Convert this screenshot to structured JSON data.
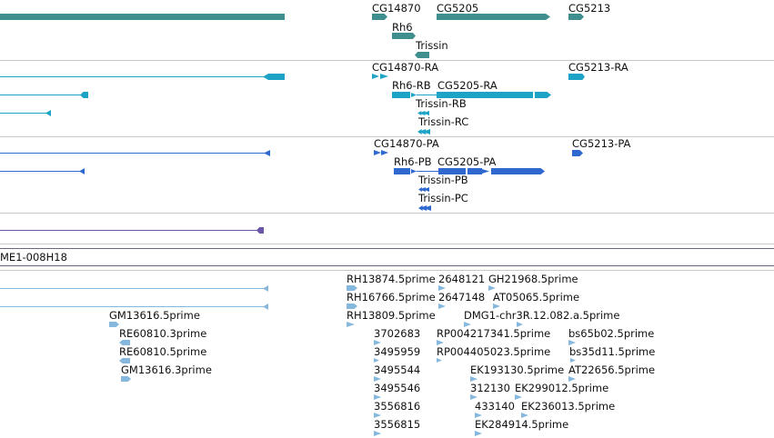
{
  "colors": {
    "gene": "#3f8f8f",
    "transcript_ra": "#1da3c5",
    "transcript_pa": "#2f69cf",
    "purple_feature": "#6b55a8",
    "est": "#86b8de",
    "separator": "#c8c8c8",
    "separator_dark": "#6b6487"
  },
  "tracks": {
    "gene": {
      "labels": [
        "CG14870",
        "CG5205",
        "CG5213",
        "Rh6",
        "Trissin"
      ]
    },
    "transcripts_ra": {
      "labels": [
        "CG14870-RA",
        "CG5213-RA",
        "Rh6-RB",
        "CG5205-RA",
        "Trissin-RB",
        "Trissin-RC"
      ]
    },
    "transcripts_pa": {
      "labels": [
        "CG14870-PA",
        "CG5213-PA",
        "Rh6-PB",
        "CG5205-PA",
        "Trissin-PB",
        "Trissin-PC"
      ]
    },
    "clone": {
      "label": "ME1-008H18"
    },
    "est": {
      "labels": [
        "RH13874.5prime",
        "2648121",
        "GH21968.5prime",
        "RH16766.5prime",
        "2647148",
        "AT05065.5prime",
        "GM13616.5prime",
        "RH13809.5prime",
        "DMG1-chr3R.12.082.a.5prime",
        "RE60810.3prime",
        "3702683",
        "RP004217341.5prime",
        "bs65b02.5prime",
        "RE60810.5prime",
        "3495959",
        "RP004405023.5prime",
        "bs35d11.5prime",
        "GM13616.3prime",
        "3495544",
        "EK193130.5prime",
        "AT22656.5prime",
        "3495546",
        "312130",
        "EK299012.5prime",
        "3556816",
        "433140",
        "EK236013.5prime",
        "3556815",
        "EK284914.5prime"
      ]
    }
  }
}
